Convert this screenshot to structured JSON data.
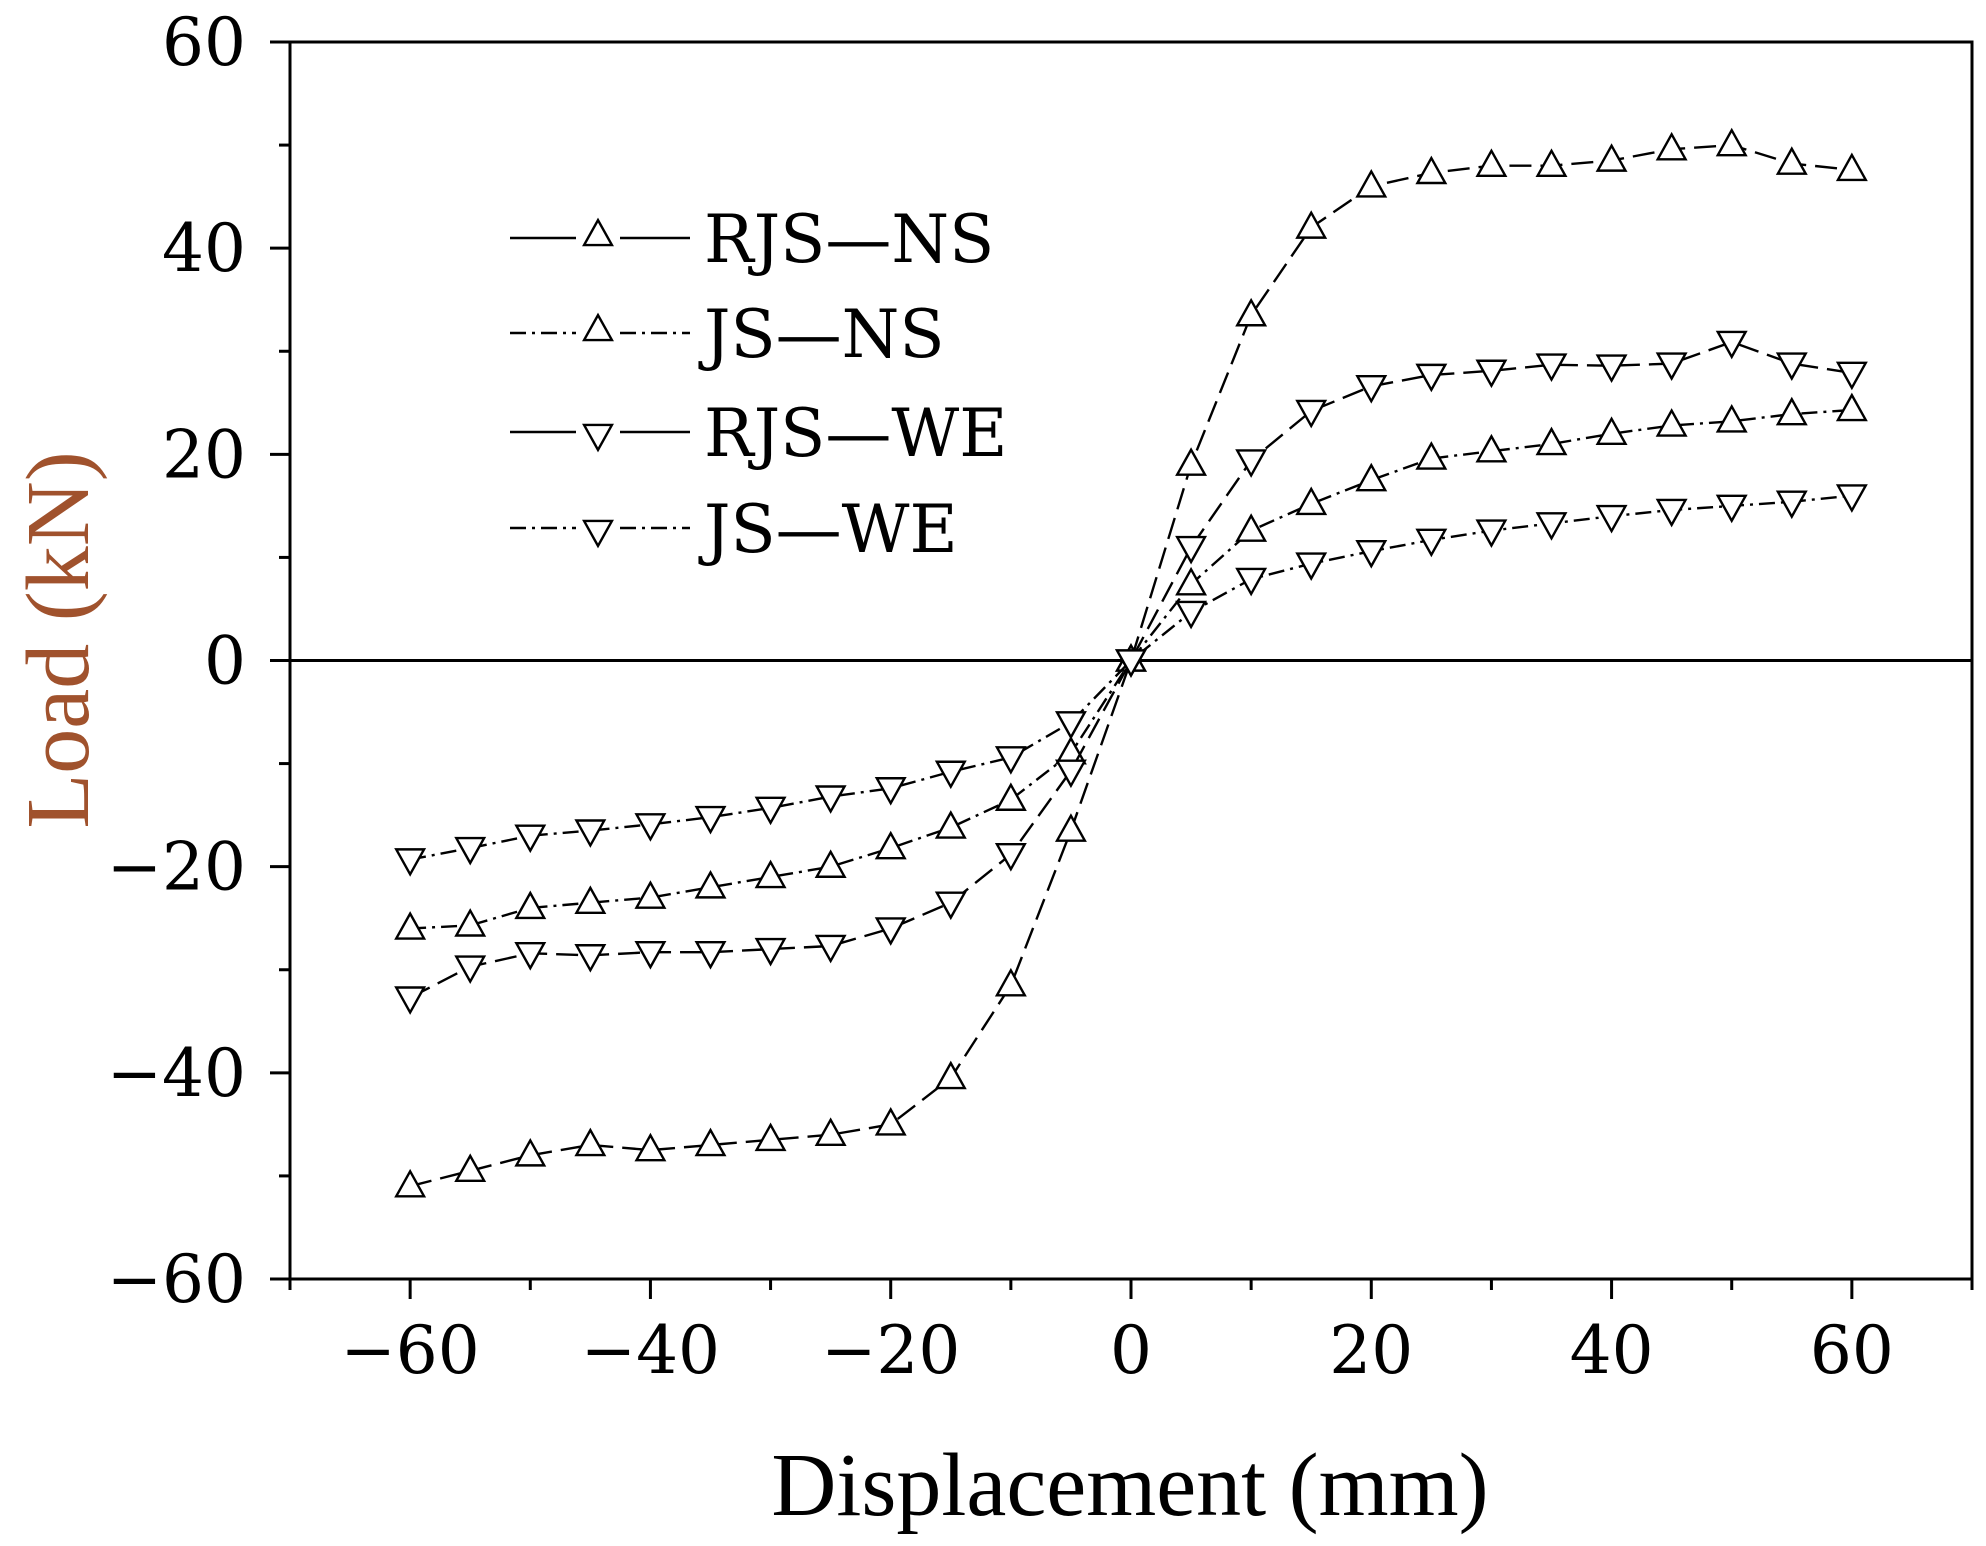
{
  "colors": {
    "ylabel": "#a0522d",
    "axes": "#000000",
    "background": "#ffffff"
  },
  "chart_data": {
    "type": "line",
    "title": "",
    "xlabel": "Displacement (mm)",
    "ylabel": "Load (kN)",
    "xlim": [
      -70,
      70
    ],
    "ylim": [
      -60,
      60
    ],
    "xticks": [
      -60,
      -40,
      -20,
      0,
      20,
      40,
      60
    ],
    "yticks": [
      -60,
      -40,
      -20,
      0,
      20,
      40,
      60
    ],
    "xtick_labels": [
      "−60",
      "−40",
      "−20",
      "0",
      "20",
      "40",
      "60"
    ],
    "ytick_labels": [
      "−60",
      "−40",
      "−20",
      "0",
      "20",
      "40",
      "60"
    ],
    "zero_line": true,
    "grid": false,
    "legend_position": "top-left",
    "series": [
      {
        "name": "RJS—NS",
        "marker": "triangle-up",
        "line_style": "dash",
        "x": [
          -60,
          -55,
          -50,
          -45,
          -40,
          -35,
          -30,
          -25,
          -20,
          -15,
          -10,
          -5,
          0,
          5,
          10,
          15,
          20,
          25,
          30,
          35,
          40,
          45,
          50,
          55,
          60
        ],
        "y": [
          -51,
          -49.5,
          -48,
          -47,
          -47.5,
          -47,
          -46.5,
          -46,
          -45,
          -40.5,
          -31.5,
          -16.5,
          0,
          19,
          33.5,
          42,
          46,
          47.3,
          48,
          48,
          48.5,
          49.6,
          50,
          48.2,
          47.6
        ]
      },
      {
        "name": "JS—NS",
        "marker": "triangle-up",
        "line_style": "dashdot",
        "x": [
          -60,
          -55,
          -50,
          -45,
          -40,
          -35,
          -30,
          -25,
          -20,
          -15,
          -10,
          -5,
          0,
          5,
          10,
          15,
          20,
          25,
          30,
          35,
          40,
          45,
          50,
          55,
          60
        ],
        "y": [
          -26,
          -25.7,
          -24,
          -23.5,
          -23,
          -22,
          -21,
          -20,
          -18.2,
          -16.2,
          -13.5,
          -9,
          0,
          7.4,
          12.6,
          15.2,
          17.5,
          19.6,
          20.3,
          21,
          22,
          22.8,
          23.2,
          23.9,
          24.3
        ]
      },
      {
        "name": "RJS—WE",
        "marker": "triangle-down",
        "line_style": "dash",
        "x": [
          -60,
          -55,
          -50,
          -45,
          -40,
          -35,
          -30,
          -25,
          -20,
          -15,
          -10,
          -5,
          0,
          5,
          10,
          15,
          20,
          25,
          30,
          35,
          40,
          45,
          50,
          55,
          60
        ],
        "y": [
          -32.7,
          -29.7,
          -28.4,
          -28.6,
          -28.3,
          -28.3,
          -28,
          -27.7,
          -26,
          -23.5,
          -18.8,
          -10.7,
          0,
          11,
          19.4,
          24.2,
          26.6,
          27.7,
          28.1,
          28.7,
          28.6,
          28.8,
          30.9,
          28.8,
          27.9
        ]
      },
      {
        "name": "JS—WE",
        "marker": "triangle-down",
        "line_style": "dashdot",
        "x": [
          -60,
          -55,
          -50,
          -45,
          -40,
          -35,
          -30,
          -25,
          -20,
          -15,
          -10,
          -5,
          0,
          5,
          10,
          15,
          20,
          25,
          30,
          35,
          40,
          45,
          50,
          55,
          60
        ],
        "y": [
          -19.3,
          -18.2,
          -17,
          -16.5,
          -15.9,
          -15.2,
          -14.3,
          -13.2,
          -12.4,
          -10.8,
          -9.4,
          -6,
          0,
          4.7,
          7.9,
          9.4,
          10.6,
          11.7,
          12.6,
          13.3,
          14,
          14.6,
          15,
          15.4,
          16
        ]
      }
    ]
  }
}
